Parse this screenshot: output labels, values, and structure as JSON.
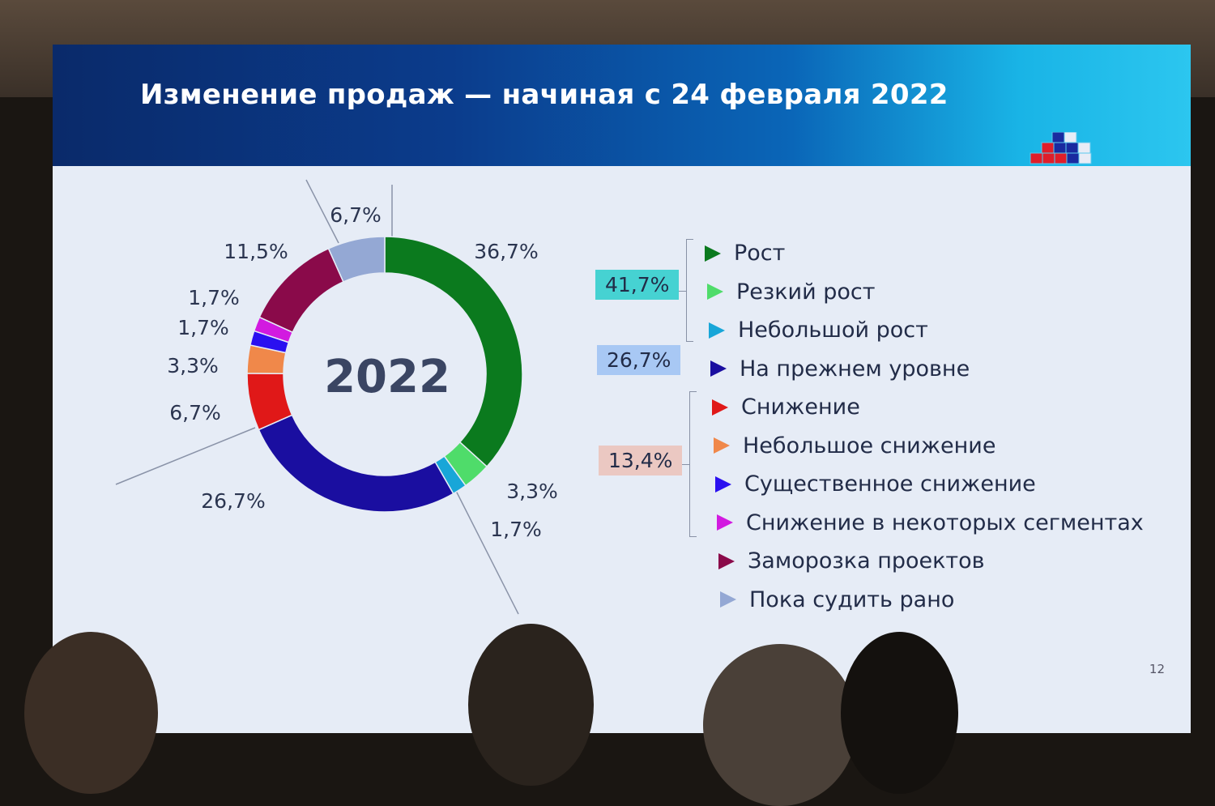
{
  "slide": {
    "title": "Изменение продаж — начиная с 24 февраля 2022",
    "page_number": "12",
    "logo_icon": "stacked-squares-logo",
    "header_colors": [
      "#0a2a6a",
      "#2cc6ef"
    ]
  },
  "chart_data": {
    "type": "pie",
    "variant": "donut",
    "center_label": "2022",
    "slices": [
      {
        "name": "Рост",
        "value": 36.7,
        "label": "36,7%",
        "color": "#0b7a1e"
      },
      {
        "name": "Резкий рост",
        "value": 3.3,
        "label": "3,3%",
        "color": "#4fdc6a"
      },
      {
        "name": "Небольшой рост",
        "value": 1.7,
        "label": "1,7%",
        "color": "#18a6d8"
      },
      {
        "name": "На прежнем уровне",
        "value": 26.7,
        "label": "26,7%",
        "color": "#1a0ea0"
      },
      {
        "name": "Снижение",
        "value": 6.7,
        "label": "6,7%",
        "color": "#e01818"
      },
      {
        "name": "Небольшое снижение",
        "value": 3.3,
        "label": "3,3%",
        "color": "#f0884a"
      },
      {
        "name": "Существенное снижение",
        "value": 1.7,
        "label": "1,7%",
        "color": "#2a10f0"
      },
      {
        "name": "Снижение в некоторых сегментах",
        "value": 1.7,
        "label": "1,7%",
        "color": "#d21ae0"
      },
      {
        "name": "Заморозка проектов",
        "value": 11.5,
        "label": "11,5%",
        "color": "#8a0a4a"
      },
      {
        "name": "Пока судить рано",
        "value": 6.7,
        "label": "6,7%",
        "color": "#94a8d4"
      }
    ],
    "legend_placement": "right",
    "groups": [
      {
        "label": "41,7%",
        "members": [
          "Рост",
          "Резкий рост",
          "Небольшой рост"
        ],
        "color": "#46d2d2"
      },
      {
        "label": "26,7%",
        "members": [
          "На прежнем уровне"
        ],
        "color": "#a8c8f4"
      },
      {
        "label": "13,4%",
        "members": [
          "Снижение",
          "Небольшое снижение",
          "Существенное снижение",
          "Снижение в некоторых сегментах"
        ],
        "color": "#ebc8c2"
      }
    ]
  }
}
